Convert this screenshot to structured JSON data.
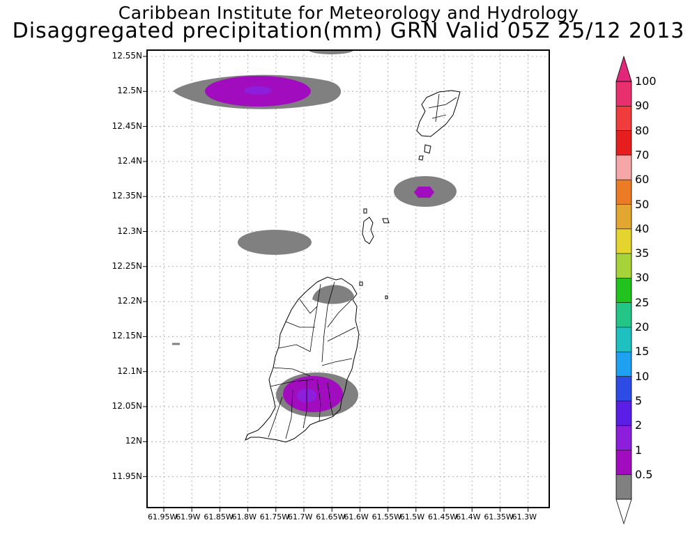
{
  "header": {
    "line1": "Caribbean Institute for Meteorology and Hydrology",
    "line2": "Disaggregated precipitation(mm) GRN Valid 05Z 25/12 2013"
  },
  "axes": {
    "lat_ticks": [
      "12.55N",
      "12.5N",
      "12.45N",
      "12.4N",
      "12.35N",
      "12.3N",
      "12.25N",
      "12.2N",
      "12.15N",
      "12.1N",
      "12.05N",
      "12N",
      "11.95N"
    ],
    "lon_ticks": [
      "61.95W",
      "61.9W",
      "61.85W",
      "61.8W",
      "61.75W",
      "61.7W",
      "61.65W",
      "61.6W",
      "61.55W",
      "61.5W",
      "61.45W",
      "61.4W",
      "61.35W",
      "61.3W"
    ]
  },
  "colorbar": {
    "labels": [
      "100",
      "90",
      "80",
      "70",
      "60",
      "50",
      "40",
      "35",
      "30",
      "25",
      "20",
      "15",
      "10",
      "5",
      "2",
      "1",
      "0.5"
    ],
    "colors": [
      "#e8306e",
      "#f03c3c",
      "#e61e1e",
      "#f6a6a6",
      "#ec7b25",
      "#e3a631",
      "#e4d42e",
      "#a6d33a",
      "#22c31f",
      "#23c686",
      "#1ec0c0",
      "#1ea1f0",
      "#2d4ce6",
      "#5a1ee6",
      "#8c1edc",
      "#a00cbe",
      "#808080"
    ],
    "top_arrow_color": "#e0277a",
    "bottom_arrow_color": "#ffffff"
  },
  "precip_areas": [
    {
      "name": "north-band",
      "lon": -61.775,
      "lat": 12.5,
      "level": "2"
    },
    {
      "name": "carriacou-east",
      "lon": -61.48,
      "lat": 12.357,
      "level": "2"
    },
    {
      "name": "west-band",
      "lon": -61.758,
      "lat": 12.285,
      "level": "0.5"
    },
    {
      "name": "grenada-north",
      "lon": -61.648,
      "lat": 12.213,
      "level": "0.5"
    },
    {
      "name": "grenada-south",
      "lon": -61.686,
      "lat": 12.065,
      "level": "2"
    },
    {
      "name": "top-edge",
      "lon": -61.65,
      "lat": 12.553,
      "level": "0.5"
    }
  ]
}
